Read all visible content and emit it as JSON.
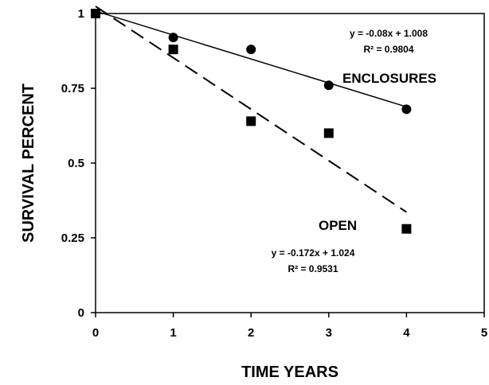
{
  "chart_data": {
    "type": "scatter",
    "xlabel": "TIME YEARS",
    "ylabel": "SURVIVAL PERCENT",
    "xlim": [
      0,
      5
    ],
    "ylim": [
      0,
      1
    ],
    "x_ticks": [
      "0",
      "1",
      "2",
      "3",
      "4",
      "5"
    ],
    "y_ticks": [
      "0",
      "0.25",
      "0.5",
      "0.75",
      "1"
    ],
    "grid": false,
    "legend": "none",
    "series": [
      {
        "name": "ENCLOSURES",
        "marker": "circle",
        "x": [
          0,
          1,
          2,
          3,
          4
        ],
        "y": [
          1.0,
          0.92,
          0.88,
          0.76,
          0.68
        ],
        "trendline": {
          "style": "solid",
          "slope": -0.08,
          "intercept": 1.008,
          "x_range": [
            0,
            4
          ]
        },
        "equation": "y = -0.08x + 1.008",
        "r_squared": "R² = 0.9804"
      },
      {
        "name": "OPEN",
        "marker": "square",
        "x": [
          0,
          1,
          2,
          3,
          4
        ],
        "y": [
          1.0,
          0.88,
          0.64,
          0.6,
          0.28
        ],
        "trendline": {
          "style": "dashed",
          "slope": -0.172,
          "intercept": 1.024,
          "x_range": [
            0,
            4
          ]
        },
        "equation": "y = -0.172x + 1.024",
        "r_squared": "R² = 0.9531"
      }
    ]
  }
}
